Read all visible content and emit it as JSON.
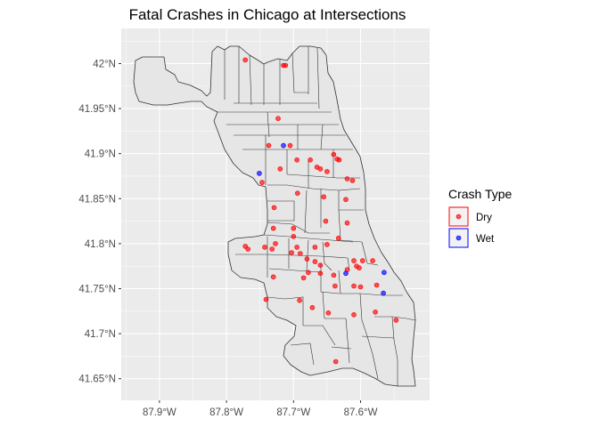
{
  "title": "Fatal Crashes in Chicago at Intersections",
  "axes": {
    "x_ticks": [
      {
        "value": -87.9,
        "label": "87.9°W"
      },
      {
        "value": -87.8,
        "label": "87.8°W"
      },
      {
        "value": -87.7,
        "label": "87.7°W"
      },
      {
        "value": -87.6,
        "label": "87.6°W"
      }
    ],
    "y_ticks": [
      {
        "value": 41.65,
        "label": "41.65°N"
      },
      {
        "value": 41.7,
        "label": "41.7°N"
      },
      {
        "value": 41.75,
        "label": "41.75°N"
      },
      {
        "value": 41.8,
        "label": "41.8°N"
      },
      {
        "value": 41.85,
        "label": "41.85°N"
      },
      {
        "value": 41.9,
        "label": "41.9°N"
      },
      {
        "value": 41.95,
        "label": "41.95°N"
      },
      {
        "value": 42.0,
        "label": "42°N"
      }
    ],
    "xlim": [
      -87.957,
      -87.497
    ],
    "ylim": [
      41.626,
      42.039
    ]
  },
  "legend": {
    "title": "Crash Type",
    "items": [
      {
        "label": "Dry",
        "fill": "#ff0000",
        "border": "#ff0000"
      },
      {
        "label": "Wet",
        "fill": "#0000ff",
        "border": "#0000ff"
      }
    ]
  },
  "colors": {
    "panel": "#ebebeb",
    "grid": "#ffffff",
    "region_fill": "#e6e6e6",
    "region_stroke": "#333333"
  },
  "chart_data": {
    "type": "scatter",
    "title": "Fatal Crashes in Chicago at Intersections",
    "xlabel": "",
    "ylabel": "",
    "series": [
      {
        "name": "Dry",
        "color": "#ff0000",
        "points": [
          [
            -87.772,
            42.004
          ],
          [
            -87.715,
            41.998
          ],
          [
            -87.712,
            41.998
          ],
          [
            -87.723,
            41.939
          ],
          [
            -87.737,
            41.909
          ],
          [
            -87.705,
            41.909
          ],
          [
            -87.64,
            41.899
          ],
          [
            -87.675,
            41.893
          ],
          [
            -87.635,
            41.894
          ],
          [
            -87.632,
            41.893
          ],
          [
            -87.695,
            41.893
          ],
          [
            -87.665,
            41.885
          ],
          [
            -87.66,
            41.883
          ],
          [
            -87.72,
            41.883
          ],
          [
            -87.65,
            41.88
          ],
          [
            -87.62,
            41.872
          ],
          [
            -87.612,
            41.87
          ],
          [
            -87.747,
            41.868
          ],
          [
            -87.694,
            41.856
          ],
          [
            -87.655,
            41.852
          ],
          [
            -87.622,
            41.849
          ],
          [
            -87.729,
            41.84
          ],
          [
            -87.62,
            41.823
          ],
          [
            -87.652,
            41.825
          ],
          [
            -87.73,
            41.817
          ],
          [
            -87.7,
            41.817
          ],
          [
            -87.7,
            41.808
          ],
          [
            -87.695,
            41.796
          ],
          [
            -87.668,
            41.796
          ],
          [
            -87.65,
            41.799
          ],
          [
            -87.633,
            41.806
          ],
          [
            -87.772,
            41.797
          ],
          [
            -87.768,
            41.794
          ],
          [
            -87.743,
            41.796
          ],
          [
            -87.727,
            41.8
          ],
          [
            -87.732,
            41.794
          ],
          [
            -87.703,
            41.79
          ],
          [
            -87.69,
            41.789
          ],
          [
            -87.68,
            41.783
          ],
          [
            -87.668,
            41.78
          ],
          [
            -87.66,
            41.776
          ],
          [
            -87.61,
            41.781
          ],
          [
            -87.597,
            41.781
          ],
          [
            -87.582,
            41.781
          ],
          [
            -87.606,
            41.775
          ],
          [
            -87.602,
            41.773
          ],
          [
            -87.62,
            41.771
          ],
          [
            -87.678,
            41.768
          ],
          [
            -87.66,
            41.767
          ],
          [
            -87.64,
            41.765
          ],
          [
            -87.73,
            41.763
          ],
          [
            -87.685,
            41.762
          ],
          [
            -87.638,
            41.753
          ],
          [
            -87.61,
            41.753
          ],
          [
            -87.6,
            41.752
          ],
          [
            -87.576,
            41.754
          ],
          [
            -87.741,
            41.738
          ],
          [
            -87.691,
            41.737
          ],
          [
            -87.672,
            41.729
          ],
          [
            -87.648,
            41.723
          ],
          [
            -87.61,
            41.721
          ],
          [
            -87.578,
            41.724
          ],
          [
            -87.547,
            41.715
          ],
          [
            -87.637,
            41.669
          ]
        ]
      },
      {
        "name": "Wet",
        "color": "#0000ff",
        "points": [
          [
            -87.715,
            41.909
          ],
          [
            -87.751,
            41.878
          ],
          [
            -87.622,
            41.767
          ],
          [
            -87.565,
            41.768
          ],
          [
            -87.566,
            41.745
          ]
        ]
      }
    ]
  }
}
